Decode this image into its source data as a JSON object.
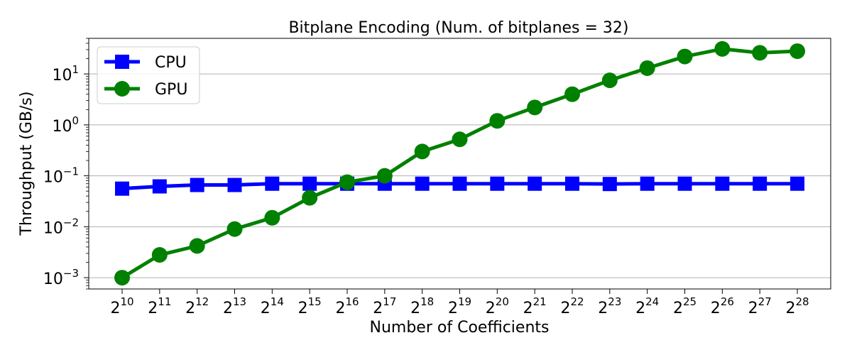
{
  "chart_data": {
    "type": "line",
    "title": "Bitplane Encoding (Num. of bitplanes = 32)",
    "xlabel": "Number of Coefficients",
    "ylabel": "Throughput (GB/s)",
    "y_scale": "log",
    "ylim": [
      0.0006,
      50
    ],
    "grid": "horizontal",
    "legend_position": "top-left",
    "x_base": "2",
    "x": [
      10,
      11,
      12,
      13,
      14,
      15,
      16,
      17,
      18,
      19,
      20,
      21,
      22,
      23,
      24,
      25,
      26,
      27,
      28
    ],
    "y_ticks": [
      {
        "value": 0.001,
        "base": "10",
        "exp": "−3"
      },
      {
        "value": 0.01,
        "base": "10",
        "exp": "−2"
      },
      {
        "value": 0.1,
        "base": "10",
        "exp": "−1"
      },
      {
        "value": 1,
        "base": "10",
        "exp": "0"
      },
      {
        "value": 10,
        "base": "10",
        "exp": "1"
      }
    ],
    "series": [
      {
        "name": "CPU",
        "color": "#0000ff",
        "marker": "square",
        "values": [
          0.056,
          0.062,
          0.066,
          0.066,
          0.07,
          0.07,
          0.07,
          0.07,
          0.07,
          0.07,
          0.07,
          0.07,
          0.07,
          0.069,
          0.07,
          0.07,
          0.07,
          0.07,
          0.07
        ]
      },
      {
        "name": "GPU",
        "color": "#008000",
        "marker": "circle",
        "values": [
          0.001,
          0.0028,
          0.0042,
          0.009,
          0.015,
          0.037,
          0.075,
          0.1,
          0.3,
          0.52,
          1.2,
          2.2,
          4.0,
          7.5,
          13,
          22,
          31,
          26,
          28
        ]
      }
    ]
  }
}
